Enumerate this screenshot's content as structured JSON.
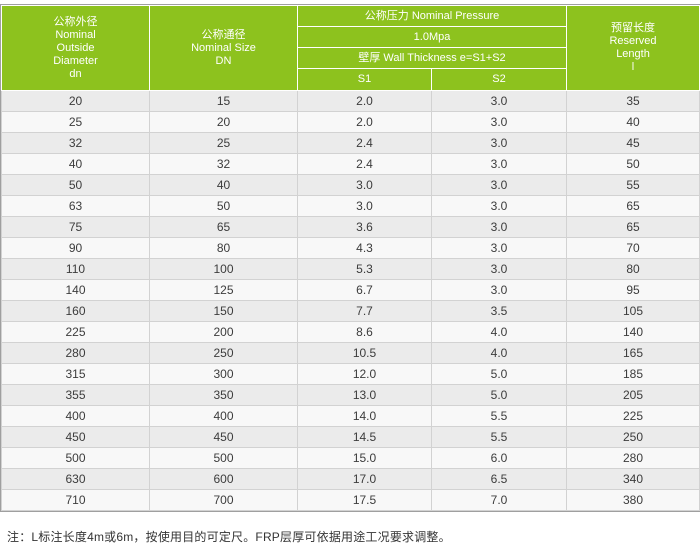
{
  "colors": {
    "header_bg": "#8dc21e",
    "header_text": "#ffffff",
    "row_odd": "#ebebeb",
    "row_even": "#f8f8f8",
    "cell_border": "#d2d2d2",
    "outer_border": "#9f9f9f",
    "body_text": "#3c3c3c"
  },
  "table": {
    "header": {
      "dn": "公称外径\nNominal\nOutside\nDiameter\ndn",
      "size": "公称通径\nNominal Size\nDN",
      "pressure": "公称压力 Nominal Pressure",
      "pressure_value": "1.0Mpa",
      "wall": "壁厚 Wall Thickness e=S1+S2",
      "s1": "S1",
      "s2": "S2",
      "reserved": "预留长度\nReserved\nLength\nl"
    },
    "rows": [
      [
        "20",
        "15",
        "2.0",
        "3.0",
        "35"
      ],
      [
        "25",
        "20",
        "2.0",
        "3.0",
        "40"
      ],
      [
        "32",
        "25",
        "2.4",
        "3.0",
        "45"
      ],
      [
        "40",
        "32",
        "2.4",
        "3.0",
        "50"
      ],
      [
        "50",
        "40",
        "3.0",
        "3.0",
        "55"
      ],
      [
        "63",
        "50",
        "3.0",
        "3.0",
        "65"
      ],
      [
        "75",
        "65",
        "3.6",
        "3.0",
        "65"
      ],
      [
        "90",
        "80",
        "4.3",
        "3.0",
        "70"
      ],
      [
        "110",
        "100",
        "5.3",
        "3.0",
        "80"
      ],
      [
        "140",
        "125",
        "6.7",
        "3.0",
        "95"
      ],
      [
        "160",
        "150",
        "7.7",
        "3.5",
        "105"
      ],
      [
        "225",
        "200",
        "8.6",
        "4.0",
        "140"
      ],
      [
        "280",
        "250",
        "10.5",
        "4.0",
        "165"
      ],
      [
        "315",
        "300",
        "12.0",
        "5.0",
        "185"
      ],
      [
        "355",
        "350",
        "13.0",
        "5.0",
        "205"
      ],
      [
        "400",
        "400",
        "14.0",
        "5.5",
        "225"
      ],
      [
        "450",
        "450",
        "14.5",
        "5.5",
        "250"
      ],
      [
        "500",
        "500",
        "15.0",
        "6.0",
        "280"
      ],
      [
        "630",
        "600",
        "17.0",
        "6.5",
        "340"
      ],
      [
        "710",
        "700",
        "17.5",
        "7.0",
        "380"
      ]
    ]
  },
  "note": "注：L标注长度4m或6m，按使用目的可定尺。FRP层厚可依据用途工况要求调整。"
}
